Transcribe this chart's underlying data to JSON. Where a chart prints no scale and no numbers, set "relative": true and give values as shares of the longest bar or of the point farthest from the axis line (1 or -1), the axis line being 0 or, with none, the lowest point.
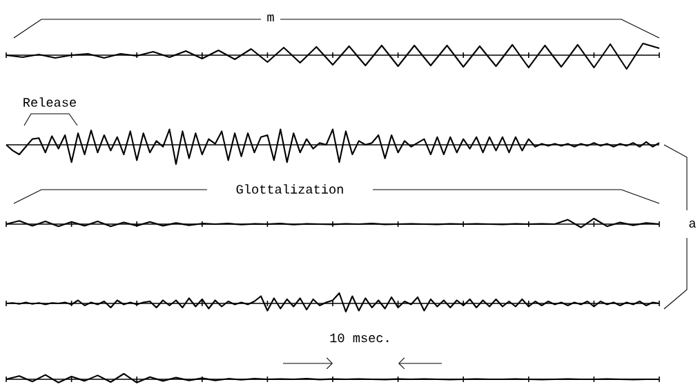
{
  "chart_data": [
    {
      "type": "line",
      "relative": true,
      "color": "#000000",
      "categories": [
        null,
        null,
        null,
        null,
        null,
        null,
        null,
        null,
        null,
        null,
        null,
        null,
        null,
        null,
        null,
        null,
        null,
        null,
        null,
        null,
        null,
        null,
        null,
        null,
        null,
        null,
        null,
        null,
        null,
        null,
        null,
        null,
        null,
        null,
        null,
        null,
        null,
        null,
        null,
        null,
        null
      ],
      "values": [
        0,
        -0.15,
        0.05,
        -0.2,
        0,
        0.1,
        -0.2,
        0.1,
        -0.05,
        0.25,
        -0.15,
        0.3,
        -0.25,
        0.35,
        -0.3,
        0.45,
        -0.5,
        0.55,
        -0.55,
        0.6,
        -0.7,
        0.65,
        -0.75,
        0.7,
        -0.8,
        0.7,
        -0.75,
        0.7,
        -0.85,
        0.65,
        -0.8,
        0.75,
        -0.9,
        0.7,
        -0.85,
        0.75,
        -0.9,
        0.8,
        -1,
        0.85,
        0.5
      ],
      "annotations": [
        "m"
      ]
    },
    {
      "type": "line",
      "relative": true,
      "color": "#000000",
      "categories": [
        null,
        null,
        null,
        null,
        null,
        null,
        null,
        null,
        null,
        null,
        null,
        null,
        null,
        null,
        null,
        null,
        null,
        null,
        null,
        null,
        null,
        null,
        null,
        null,
        null,
        null,
        null,
        null,
        null,
        null,
        null,
        null,
        null,
        null,
        null,
        null,
        null,
        null,
        null,
        null,
        null,
        null,
        null,
        null,
        null,
        null,
        null,
        null,
        null,
        null,
        null,
        null,
        null,
        null,
        null,
        null,
        null,
        null,
        null,
        null,
        null,
        null,
        null,
        null,
        null,
        null,
        null,
        null,
        null,
        null,
        null,
        null,
        null,
        null,
        null,
        null,
        null,
        null,
        null,
        null,
        null,
        null,
        null,
        null,
        null,
        null,
        null,
        null,
        null,
        null,
        null,
        null,
        null,
        null,
        null,
        null,
        null,
        null,
        null,
        null,
        null
      ],
      "values": [
        0,
        -0.3,
        -0.5,
        -0.1,
        0.3,
        0.35,
        -0.4,
        0.45,
        -0.2,
        0.5,
        -0.9,
        0.6,
        -0.5,
        0.75,
        -0.4,
        0.5,
        -0.3,
        0.4,
        -0.5,
        0.7,
        -0.8,
        0.6,
        -0.4,
        0.2,
        -0.1,
        0.8,
        -1,
        0.7,
        -0.7,
        0.6,
        -0.5,
        0.3,
        0.05,
        0.7,
        -0.8,
        0.6,
        -0.6,
        0.6,
        -0.4,
        0.4,
        0.5,
        -0.8,
        0.8,
        -0.9,
        0.6,
        -0.4,
        0.3,
        -0.2,
        0.1,
        0,
        0.8,
        -0.9,
        0.7,
        -0.5,
        0.2,
        0,
        0.1,
        0.5,
        -0.7,
        0.5,
        -0.4,
        0.2,
        -0.1,
        0.1,
        0.3,
        -0.5,
        0.4,
        -0.5,
        0.4,
        -0.4,
        0.3,
        -0.2,
        0.4,
        -0.4,
        0.4,
        -0.3,
        0.4,
        -0.4,
        0.4,
        -0.3,
        0.3,
        -0.1,
        0.05,
        -0.05,
        0.05,
        -0.05,
        0.05,
        -0.1,
        0.05,
        -0.05,
        0.1,
        -0.05,
        0.05,
        -0.1,
        0.05,
        -0.05,
        0.1,
        -0.1,
        0.15,
        -0.1,
        0.1
      ],
      "annotations": [
        "Release"
      ]
    },
    {
      "type": "line",
      "relative": true,
      "color": "#000000",
      "categories": [
        null,
        null,
        null,
        null,
        null,
        null,
        null,
        null,
        null,
        null,
        null,
        null,
        null,
        null,
        null,
        null,
        null,
        null,
        null,
        null,
        null,
        null,
        null,
        null,
        null,
        null,
        null,
        null,
        null,
        null,
        null,
        null,
        null,
        null,
        null,
        null,
        null,
        null,
        null,
        null,
        null,
        null,
        null,
        null,
        null,
        null,
        null,
        null,
        null,
        null,
        null
      ],
      "values": [
        0,
        0.6,
        -0.3,
        0.5,
        -0.4,
        0.4,
        -0.3,
        0.5,
        -0.4,
        0.3,
        -0.3,
        0.4,
        -0.3,
        0.2,
        -0.2,
        0.1,
        0,
        0.1,
        -0.1,
        0.05,
        0,
        0.1,
        -0.1,
        0.05,
        0,
        -0.05,
        0.05,
        0,
        0.1,
        -0.05,
        0,
        0.05,
        0,
        -0.05,
        0.05,
        0,
        0.05,
        0,
        -0.05,
        0.05,
        0,
        0.05,
        0,
        0.8,
        -0.6,
        1,
        -0.4,
        0.3,
        -0.2,
        0.2,
        0
      ],
      "annotations": [
        "Glottalization",
        "a"
      ]
    },
    {
      "type": "line",
      "relative": true,
      "color": "#000000",
      "categories": [
        null,
        null,
        null,
        null,
        null,
        null,
        null,
        null,
        null,
        null,
        null,
        null,
        null,
        null,
        null,
        null,
        null,
        null,
        null,
        null,
        null,
        null,
        null,
        null,
        null,
        null,
        null,
        null,
        null,
        null,
        null,
        null,
        null,
        null,
        null,
        null,
        null,
        null,
        null,
        null,
        null,
        null,
        null,
        null,
        null,
        null,
        null,
        null,
        null,
        null,
        null,
        null,
        null,
        null,
        null,
        null,
        null,
        null,
        null,
        null,
        null,
        null,
        null,
        null,
        null,
        null,
        null,
        null,
        null,
        null,
        null,
        null,
        null,
        null,
        null,
        null,
        null,
        null,
        null,
        null,
        null,
        null,
        null,
        null,
        null,
        null,
        null,
        null,
        null,
        null,
        null,
        null,
        null,
        null,
        null,
        null,
        null,
        null,
        null,
        null,
        null
      ],
      "values": [
        0,
        0.05,
        -0.05,
        0.1,
        -0.05,
        0.05,
        -0.1,
        0.05,
        0,
        0.1,
        -0.1,
        0.3,
        -0.2,
        0.1,
        -0.1,
        0.2,
        -0.4,
        0.3,
        -0.1,
        0.1,
        -0.1,
        0.1,
        0.2,
        -0.4,
        0.3,
        -0.2,
        0.3,
        -0.4,
        0.5,
        -0.3,
        0.4,
        -0.5,
        0.3,
        -0.3,
        0.2,
        -0.1,
        0.1,
        -0.1,
        0.2,
        0.7,
        -0.7,
        0.5,
        -0.5,
        0.4,
        -0.3,
        0.5,
        -0.6,
        0.4,
        -0.2,
        0.1,
        0.3,
        1,
        -0.8,
        0.7,
        -0.7,
        0.5,
        -0.4,
        0.3,
        -0.5,
        0.6,
        -0.4,
        0.2,
        -0.1,
        0.6,
        -0.7,
        0.4,
        -0.3,
        0.3,
        -0.4,
        0.3,
        -0.2,
        0.4,
        -0.4,
        0.3,
        -0.3,
        0.4,
        -0.3,
        0.2,
        -0.3,
        0.4,
        -0.3,
        0.2,
        -0.2,
        0.2,
        -0.1,
        0.1,
        -0.2,
        0.1,
        -0.1,
        0.2,
        -0.3,
        0.2,
        -0.1,
        0.1,
        -0.2,
        0.1,
        -0.1,
        0.2,
        -0.2,
        0.1,
        0
      ]
    },
    {
      "type": "line",
      "relative": true,
      "color": "#000000",
      "categories": [
        null,
        null,
        null,
        null,
        null,
        null,
        null,
        null,
        null,
        null,
        null,
        null,
        null,
        null,
        null,
        null,
        null,
        null,
        null,
        null,
        null,
        null,
        null,
        null,
        null,
        null,
        null,
        null,
        null,
        null,
        null,
        null,
        null,
        null,
        null,
        null,
        null,
        null,
        null,
        null,
        null,
        null,
        null,
        null,
        null,
        null,
        null,
        null,
        null,
        null,
        null
      ],
      "values": [
        0,
        0.6,
        -0.4,
        0.8,
        -0.6,
        0.5,
        -0.3,
        0.7,
        -0.5,
        1,
        -0.6,
        0.4,
        -0.3,
        0.3,
        -0.2,
        0.2,
        -0.2,
        0.1,
        -0.1,
        0.1,
        0,
        0.05,
        0,
        0.1,
        -0.05,
        0.05,
        0,
        0.05,
        0,
        -0.05,
        0.05,
        0,
        0.05,
        0,
        -0.05,
        0,
        0.05,
        0,
        0,
        0.05,
        0,
        -0.05,
        0,
        0.05,
        0,
        0,
        0.05,
        0,
        -0.05,
        0,
        0
      ],
      "annotations": [
        "10 msec."
      ]
    }
  ]
}
